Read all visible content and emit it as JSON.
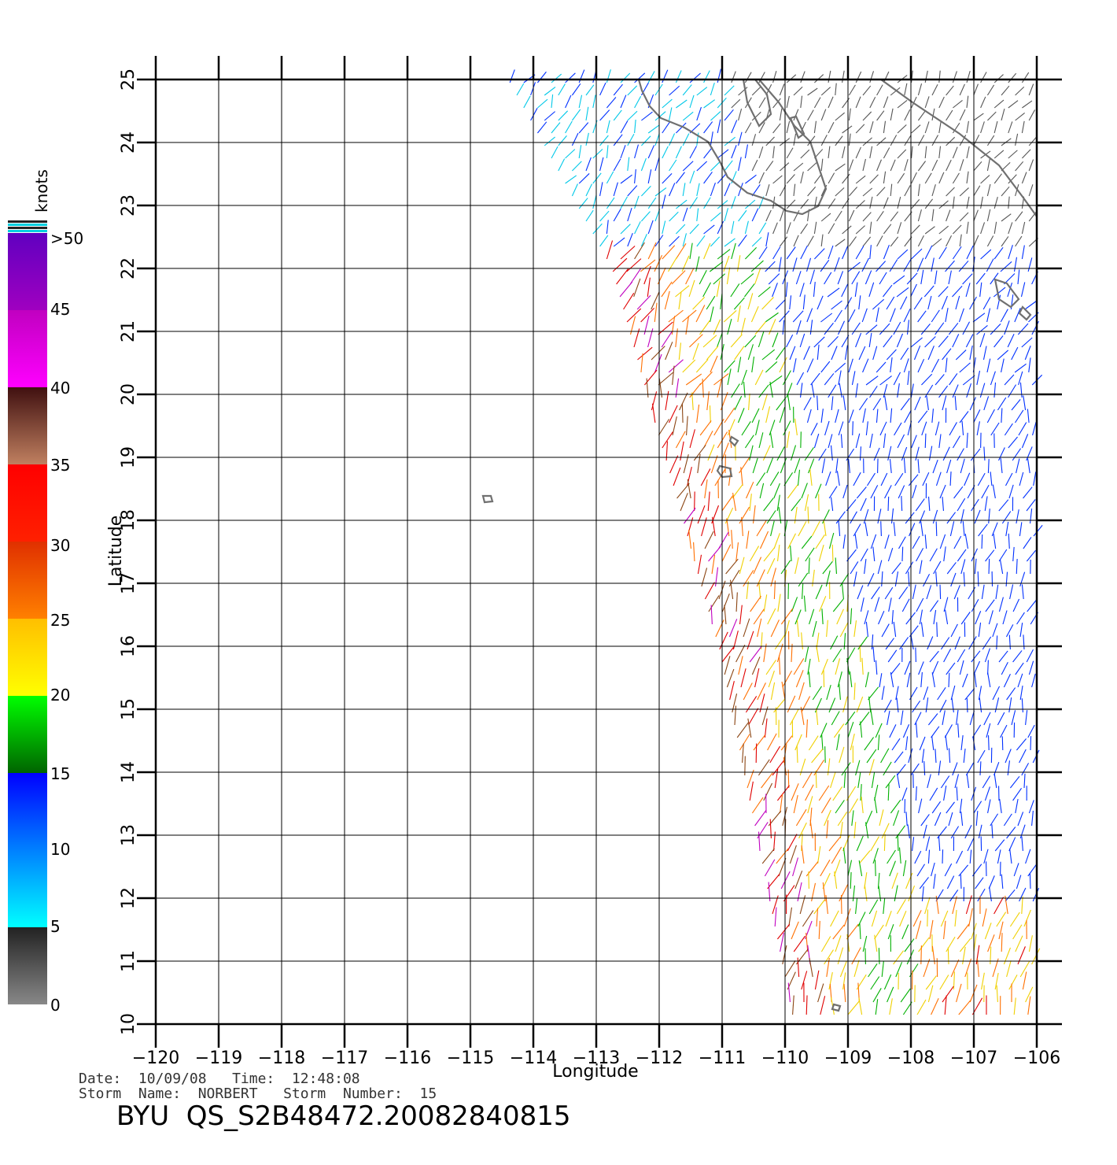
{
  "map": {
    "x_axis": {
      "title": "Longitude",
      "range": [
        -120,
        -106
      ],
      "ticks": [
        -120,
        -119,
        -118,
        -117,
        -116,
        -115,
        -114,
        -113,
        -112,
        -111,
        -110,
        -109,
        -108,
        -107,
        -106
      ],
      "tick_labels": [
        "−120",
        "−119",
        "−118",
        "−117",
        "−116",
        "−115",
        "−114",
        "−113",
        "−112",
        "−111",
        "−110",
        "−109",
        "−108",
        "−107",
        "−106"
      ]
    },
    "y_axis": {
      "title": "Latitude",
      "range": [
        10,
        25
      ],
      "ticks": [
        10,
        11,
        12,
        13,
        14,
        15,
        16,
        17,
        18,
        19,
        20,
        21,
        22,
        23,
        24,
        25
      ],
      "tick_labels": [
        "10",
        "11",
        "12",
        "13",
        "14",
        "15",
        "16",
        "17",
        "18",
        "19",
        "20",
        "21",
        "22",
        "23",
        "24",
        "25"
      ]
    },
    "grid": true,
    "land_outline_color": "#707070"
  },
  "colorbar": {
    "unit": "knots",
    "tick_labels": [
      "0",
      "5",
      "10",
      "15",
      "20",
      "25",
      "30",
      "35",
      "40",
      "45",
      ">50"
    ],
    "bins": [
      {
        "from": 0,
        "to": 5,
        "colors": [
          "#888888",
          "#222222"
        ]
      },
      {
        "from": 5,
        "to": 10,
        "colors": [
          "#00ffff",
          "#0080ff"
        ]
      },
      {
        "from": 10,
        "to": 15,
        "colors": [
          "#0080ff",
          "#0000ff"
        ]
      },
      {
        "from": 15,
        "to": 20,
        "colors": [
          "#006400",
          "#00ff00"
        ]
      },
      {
        "from": 20,
        "to": 25,
        "colors": [
          "#ffff00",
          "#ffbf00"
        ]
      },
      {
        "from": 25,
        "to": 30,
        "colors": [
          "#ff8000",
          "#e03000"
        ]
      },
      {
        "from": 30,
        "to": 35,
        "colors": [
          "#ff2000",
          "#ff0000"
        ]
      },
      {
        "from": 35,
        "to": 40,
        "colors": [
          "#c08060",
          "#401010"
        ]
      },
      {
        "from": 40,
        "to": 45,
        "colors": [
          "#ff00ff",
          "#c000c0"
        ]
      },
      {
        "from": 45,
        "to": 50,
        "colors": [
          "#a000c0",
          "#6000c0"
        ]
      }
    ]
  },
  "footer": {
    "date_line": "Date:  10/09/08   Time:  12:48:08",
    "storm_line": "Storm  Name:  NORBERT   Storm  Number:  15",
    "product_id": "BYU  QS_S2B48472.20082840815"
  }
}
